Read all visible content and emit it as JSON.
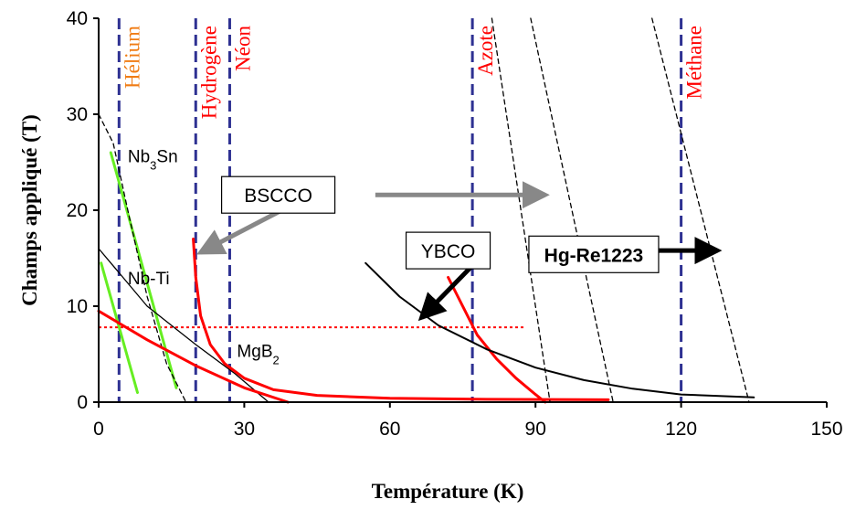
{
  "chart_data": {
    "type": "line",
    "xlabel": "Température (K)",
    "ylabel": "Champs appliqué (T)",
    "xlim": [
      0,
      150
    ],
    "ylim": [
      0,
      40
    ],
    "xticks": [
      "0",
      "30",
      "60",
      "90",
      "120",
      "150"
    ],
    "yticks": [
      "0",
      "10",
      "20",
      "30",
      "40"
    ],
    "grid": false,
    "colors": {
      "ref_line": "#2e3192",
      "orange": "#f07c14",
      "red": "#ff0000",
      "green": "#66ee22",
      "black": "#000000",
      "gray": "#888888"
    },
    "reference_lines": [
      {
        "label": "Hélium",
        "x": 4.2,
        "color": "#f07c14"
      },
      {
        "label": "Hydrogène",
        "x": 20,
        "color": "#ff0000"
      },
      {
        "label": "Néon",
        "x": 27,
        "color": "#ff0000"
      },
      {
        "label": "Azote",
        "x": 77,
        "color": "#ff0000"
      },
      {
        "label": "Méthane",
        "x": 120,
        "color": "#ff0000"
      }
    ],
    "hline": {
      "y": 7.8,
      "x": [
        0,
        88
      ],
      "color": "#ff0000"
    },
    "material_labels": [
      {
        "base": "Nb",
        "sub": "3",
        "rest": "Sn",
        "x": 6,
        "y": 25
      },
      {
        "base": "Nb-Ti",
        "sub": "",
        "rest": "",
        "x": 6,
        "y": 12.3
      },
      {
        "base": "MgB",
        "sub": "2",
        "rest": "",
        "x": 28.5,
        "y": 4.7
      }
    ],
    "boxes": [
      {
        "label": "BSCCO",
        "x": 37,
        "y": 21.6
      },
      {
        "label": "YBCO",
        "x": 72,
        "y": 15.8
      },
      {
        "label": "Hg-Re1223",
        "x": 102,
        "y": 15.4,
        "bold": true
      }
    ],
    "series": [
      {
        "type": "green-Nb3Sn",
        "x": [
          2.5,
          16
        ],
        "y": [
          26,
          1.5
        ],
        "color": "#66ee22",
        "width": 3
      },
      {
        "type": "green-NbTi",
        "x": [
          0.5,
          8
        ],
        "y": [
          14.5,
          1
        ],
        "color": "#66ee22",
        "width": 3
      },
      {
        "type": "black-dashed",
        "x": [
          0,
          3,
          6,
          10,
          14,
          18
        ],
        "y": [
          30,
          27,
          20,
          11,
          4,
          0
        ],
        "color": "#000000",
        "dash": true
      },
      {
        "type": "black-thin",
        "x": [
          0,
          5,
          10,
          15,
          20,
          28,
          35
        ],
        "y": [
          16,
          13,
          10,
          8,
          6,
          3,
          0
        ],
        "color": "#000000"
      },
      {
        "type": "red-H",
        "x": [
          19.5,
          20,
          21,
          23,
          26,
          30,
          36,
          45,
          60,
          80,
          105
        ],
        "y": [
          17,
          13,
          9,
          6,
          4,
          2.5,
          1.3,
          0.7,
          0.4,
          0.3,
          0.25
        ],
        "color": "#ff0000",
        "width": 3
      },
      {
        "type": "red-MgB2",
        "x": [
          0,
          10,
          20,
          30,
          39
        ],
        "y": [
          9.5,
          6.5,
          3.8,
          1.5,
          0
        ],
        "color": "#ff0000",
        "width": 3
      },
      {
        "type": "red-YBCO",
        "x": [
          72,
          75,
          78,
          82,
          86,
          90,
          92
        ],
        "y": [
          13,
          10,
          7,
          4.5,
          2.5,
          0.8,
          0
        ],
        "color": "#ff0000",
        "width": 3
      },
      {
        "type": "black-Hg",
        "x": [
          55,
          62,
          70,
          80,
          90,
          100,
          110,
          120,
          135
        ],
        "y": [
          14.5,
          11,
          8,
          5.5,
          3.6,
          2.3,
          1.4,
          0.8,
          0.5
        ],
        "color": "#000000",
        "width": 2
      },
      {
        "type": "dash-1",
        "x": [
          81,
          93
        ],
        "y": [
          40,
          0
        ],
        "color": "#000000",
        "dash": true
      },
      {
        "type": "dash-2",
        "x": [
          89,
          106
        ],
        "y": [
          40,
          0
        ],
        "color": "#000000",
        "dash": true
      },
      {
        "type": "dash-3",
        "x": [
          114,
          134
        ],
        "y": [
          40,
          0
        ],
        "color": "#000000",
        "dash": true
      }
    ],
    "arrows": [
      {
        "from": [
          38.5,
          20.2
        ],
        "to": [
          21,
          15.6
        ],
        "color": "#888888"
      },
      {
        "from": [
          57,
          21.6
        ],
        "to": [
          92,
          21.6
        ],
        "color": "#888888"
      },
      {
        "from": [
          78.5,
          15
        ],
        "to": [
          66.5,
          8.8
        ],
        "color": "#000000"
      },
      {
        "from": [
          113.5,
          15.8
        ],
        "to": [
          127.5,
          15.8
        ],
        "color": "#000000"
      }
    ]
  }
}
